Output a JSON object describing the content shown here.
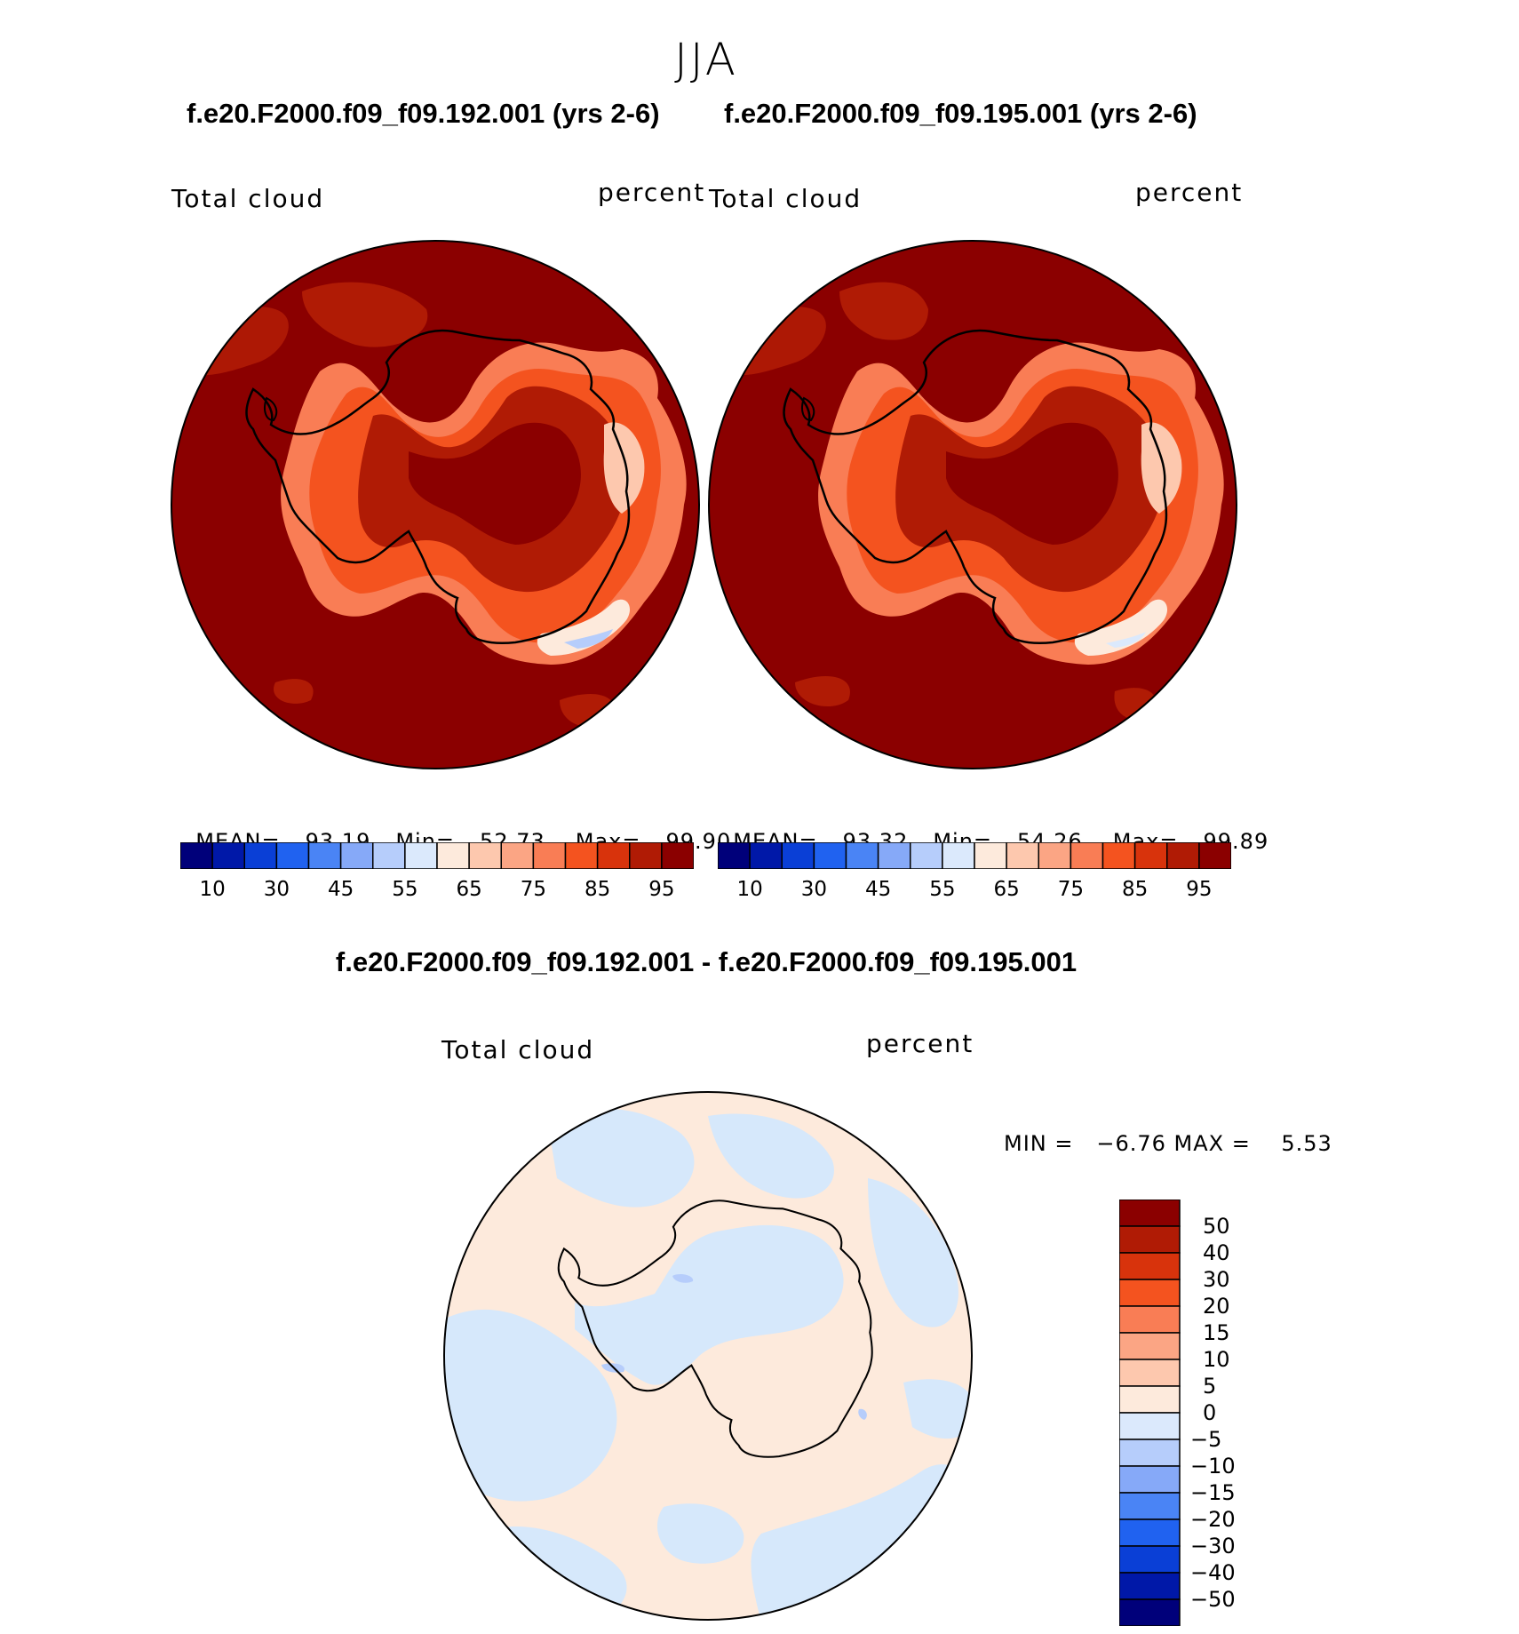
{
  "season": "JJA",
  "colors": {
    "map_bg_dark": "#8b0000",
    "coast": "#000000",
    "diff_pos": "#fde9d9",
    "diff_neg": "#d6e8fb"
  },
  "panels": [
    {
      "case": "f.e20.F2000.f09_f09.192.001 (yrs 2-6)",
      "left_label": "Total cloud",
      "right_label": "percent",
      "mean_label": "MEAN=",
      "mean": "93.19",
      "min_label": "Min=",
      "min": "52.73",
      "max_label": "Max=",
      "max": "99.90"
    },
    {
      "case": "f.e20.F2000.f09_f09.195.001 (yrs 2-6)",
      "left_label": "Total cloud",
      "right_label": "percent",
      "mean_label": "MEAN=",
      "mean": "93.32",
      "min_label": "Min=",
      "min": "54.26",
      "max_label": "Max=",
      "max": "99.89"
    }
  ],
  "colorbar": {
    "colors": [
      "#00007a",
      "#0018a8",
      "#0a3fd6",
      "#2062f0",
      "#4a84f5",
      "#86a9f8",
      "#b6cdfb",
      "#dbe9fc",
      "#fdeadc",
      "#fdc8ae",
      "#fba584",
      "#f97d55",
      "#f4531f",
      "#d8330c",
      "#b01b05",
      "#8b0000"
    ],
    "tick_labels": [
      "10",
      "30",
      "45",
      "55",
      "65",
      "75",
      "85",
      "95"
    ]
  },
  "diff": {
    "title": "f.e20.F2000.f09_f09.192.001 - f.e20.F2000.f09_f09.195.001",
    "left_label": "Total cloud",
    "right_label": "percent",
    "minmax": "MIN =   −6.76 MAX =    5.53",
    "colorbar": {
      "colors": [
        "#8b0000",
        "#b01b05",
        "#d8330c",
        "#f4531f",
        "#f97d55",
        "#fba584",
        "#fdc8ae",
        "#fdeadc",
        "#dbe9fc",
        "#b6cdfb",
        "#86a9f8",
        "#4a84f5",
        "#2062f0",
        "#0a3fd6",
        "#0018a8",
        "#00007a"
      ],
      "labels": [
        "50",
        "40",
        "30",
        "20",
        "15",
        "10",
        "5",
        "0",
        "−5",
        "−10",
        "−15",
        "−20",
        "−30",
        "−40",
        "−50"
      ]
    }
  }
}
